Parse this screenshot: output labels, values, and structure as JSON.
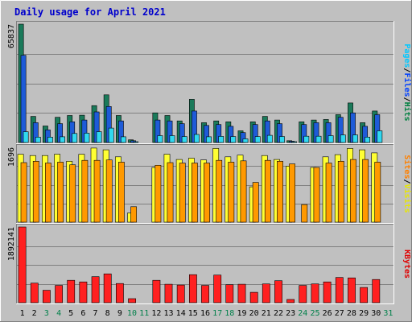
{
  "chart_data": {
    "type": "bar",
    "title": "Daily usage for April 2021",
    "days": [
      "1",
      "2",
      "3",
      "4",
      "5",
      "6",
      "7",
      "8",
      "9",
      "10",
      "11",
      "12",
      "13",
      "14",
      "15",
      "16",
      "17",
      "18",
      "19",
      "20",
      "21",
      "22",
      "23",
      "24",
      "25",
      "26",
      "27",
      "28",
      "29",
      "30",
      "31"
    ],
    "weekend_days": [
      "3",
      "4",
      "10",
      "11",
      "17",
      "18",
      "24",
      "25",
      "31"
    ],
    "panels": [
      {
        "max_label": "65837",
        "ymax": 65837,
        "side_labels": [
          {
            "text": "Pages",
            "color": "#00c8ff"
          },
          {
            "text": "/",
            "color": "#000000"
          },
          {
            "text": "Files",
            "color": "#0040ff"
          },
          {
            "text": "/",
            "color": "#000000"
          },
          {
            "text": "Hits",
            "color": "#008040"
          }
        ],
        "series": [
          {
            "name": "Hits",
            "color": "#1a7a5a",
            "values": [
              65837,
              14500,
              9200,
              14000,
              15000,
              15200,
              20500,
              26500,
              15000,
              1500,
              0,
              16500,
              15000,
              12000,
              24000,
              11000,
              12000,
              11500,
              6500,
              11500,
              14500,
              12500,
              1000,
              11500,
              12500,
              12800,
              15500,
              22000,
              11000,
              17500,
              0
            ]
          },
          {
            "name": "Files",
            "color": "#1e5bd8",
            "values": [
              48500,
              11000,
              7000,
              10500,
              11500,
              12500,
              17000,
              20000,
              12000,
              1000,
              0,
              12500,
              12000,
              10500,
              17500,
              9500,
              10000,
              9000,
              5500,
              10000,
              12000,
              10500,
              700,
              10000,
              11000,
              11000,
              14000,
              16500,
              9000,
              15500,
              0
            ]
          },
          {
            "name": "Pages",
            "color": "#30d8f0",
            "values": [
              6000,
              3000,
              3000,
              3200,
              5000,
              5200,
              6000,
              8000,
              3200,
              300,
              0,
              3800,
              3800,
              3300,
              4500,
              3200,
              3400,
              3300,
              2000,
              3300,
              4000,
              3300,
              200,
              3500,
              3500,
              3800,
              4200,
              4200,
              3000,
              6500,
              0
            ]
          }
        ]
      },
      {
        "max_label": "1696",
        "ymax": 1696,
        "side_labels": [
          {
            "text": "Sites",
            "color": "#ff8000"
          },
          {
            "text": "/",
            "color": "#000000"
          },
          {
            "text": "Visits",
            "color": "#e8e800"
          }
        ],
        "series": [
          {
            "name": "Visits",
            "color": "#ffff33",
            "values": [
              1540,
              1510,
              1510,
              1540,
              1380,
              1540,
              1680,
              1640,
              1480,
              210,
              0,
              1240,
              1540,
              1420,
              1450,
              1410,
              1670,
              1480,
              1520,
              800,
              1510,
              1420,
              1270,
              0,
              1240,
              1480,
              1530,
              1670,
              1640,
              1570,
              0
            ]
          },
          {
            "name": "Sites",
            "color": "#ff9900",
            "values": [
              1350,
              1380,
              1340,
              1360,
              1300,
              1400,
              1400,
              1410,
              1360,
              350,
              0,
              1290,
              1350,
              1340,
              1340,
              1340,
              1400,
              1360,
              1390,
              900,
              1400,
              1380,
              1320,
              400,
              1240,
              1340,
              1380,
              1420,
              1420,
              1360,
              0
            ]
          }
        ]
      },
      {
        "max_label": "1892141",
        "ymax": 1892141,
        "side_labels": [
          {
            "text": "KBytes",
            "color": "#e00000"
          }
        ],
        "series": [
          {
            "name": "KBytes",
            "color": "#ff2020",
            "values": [
              1892141,
              490000,
              310000,
              430000,
              560000,
              520000,
              650000,
              720000,
              480000,
              100000,
              0,
              560000,
              460000,
              440000,
              700000,
              430000,
              690000,
              450000,
              460000,
              260000,
              470000,
              550000,
              80000,
              430000,
              470000,
              520000,
              630000,
              620000,
              380000,
              580000,
              0
            ]
          }
        ]
      }
    ]
  }
}
